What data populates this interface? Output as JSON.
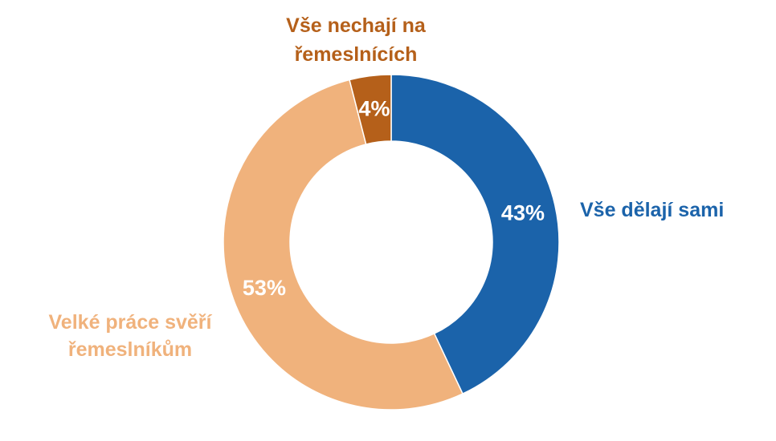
{
  "chart_data": {
    "type": "pie",
    "variant": "donut",
    "title": "",
    "legend": "none",
    "categories": [
      "Vše dělají sami",
      "Velké práce svěří řemeslníkům",
      "Vše nechají na řemeslnících"
    ],
    "values": [
      43,
      53,
      4
    ],
    "value_labels": [
      "43%",
      "53%",
      "4%"
    ],
    "category_label_lines": [
      [
        "Vše dělají sami"
      ],
      [
        "Velké práce svěří",
        "řemeslníkům"
      ],
      [
        "Vše nechají na",
        "řemeslnících"
      ]
    ],
    "colors": [
      "#1b63aa",
      "#f0b27c",
      "#b5601a"
    ],
    "label_colors": [
      "#1b63aa",
      "#f0b27c",
      "#b5601a"
    ],
    "start_angle": "12 o'clock",
    "direction": "clockwise"
  }
}
